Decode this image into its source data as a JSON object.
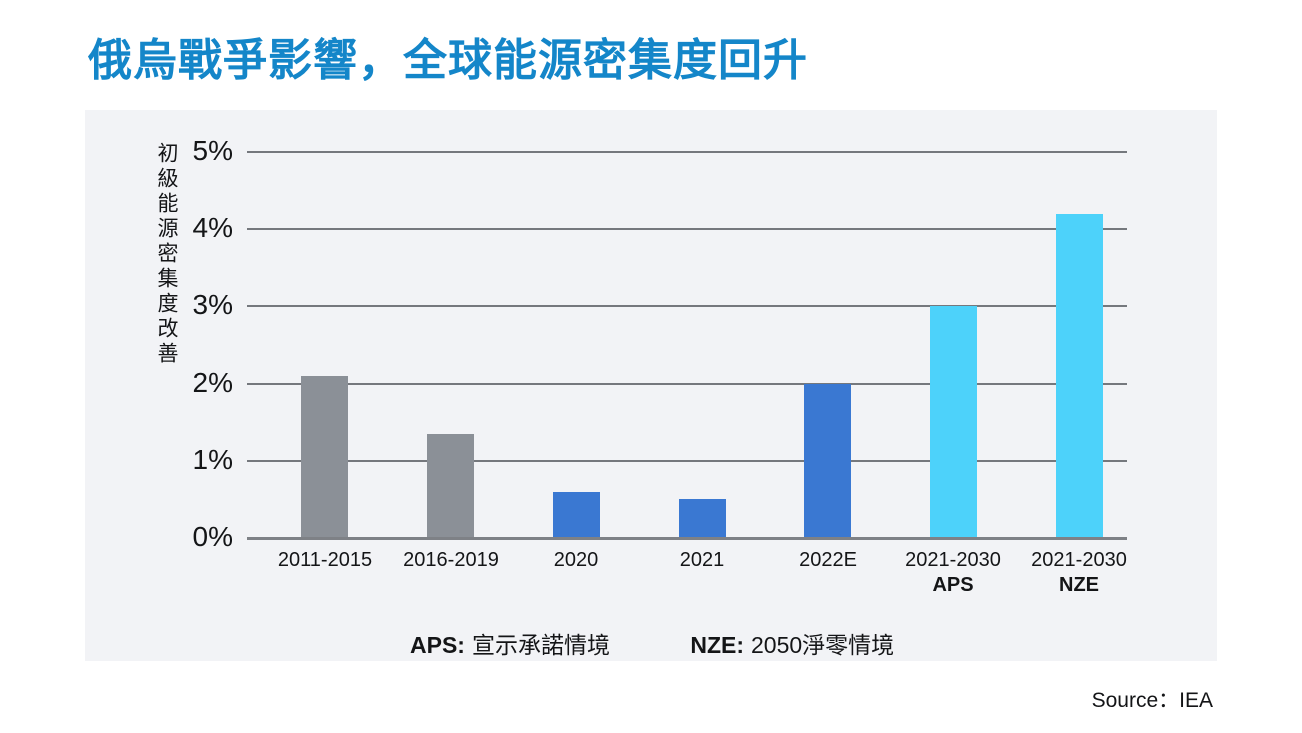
{
  "page": {
    "title": "俄烏戰爭影響，全球能源密集度回升",
    "source": "Source：IEA"
  },
  "footnotes": [
    {
      "abbr": "APS:",
      "text": "宣示承諾情境"
    },
    {
      "abbr": "NZE:",
      "text": "2050淨零情境"
    }
  ],
  "colors": {
    "title_accent": "#1486c9",
    "panel_bg": "#f2f3f6",
    "grid": "#75787d",
    "axis": "#7e8186",
    "text": "#141517",
    "bar_gray": "#8b9097",
    "bar_blue": "#3a78d2",
    "bar_cyan": "#4dd2fa"
  },
  "chart_data": {
    "type": "bar",
    "title": "俄烏戰爭影響，全球能源密集度回升",
    "ylabel": "初級能源密集度改善",
    "xlabel": "",
    "unit": "%",
    "ylim": [
      0,
      5
    ],
    "yticks": [
      0,
      1,
      2,
      3,
      4,
      5
    ],
    "ytick_suffix": "%",
    "grid": true,
    "legend": false,
    "categories": [
      "2011-2015",
      "2016-2019",
      "2020",
      "2021",
      "2022E",
      "2021-2030",
      "2021-2030"
    ],
    "sublabels": [
      "",
      "",
      "",
      "",
      "",
      "APS",
      "NZE"
    ],
    "values": [
      2.1,
      1.35,
      0.6,
      0.5,
      2.0,
      3.0,
      4.2
    ],
    "bar_colors": [
      "#8b9097",
      "#8b9097",
      "#3a78d2",
      "#3a78d2",
      "#3a78d2",
      "#4dd2fa",
      "#4dd2fa"
    ]
  }
}
